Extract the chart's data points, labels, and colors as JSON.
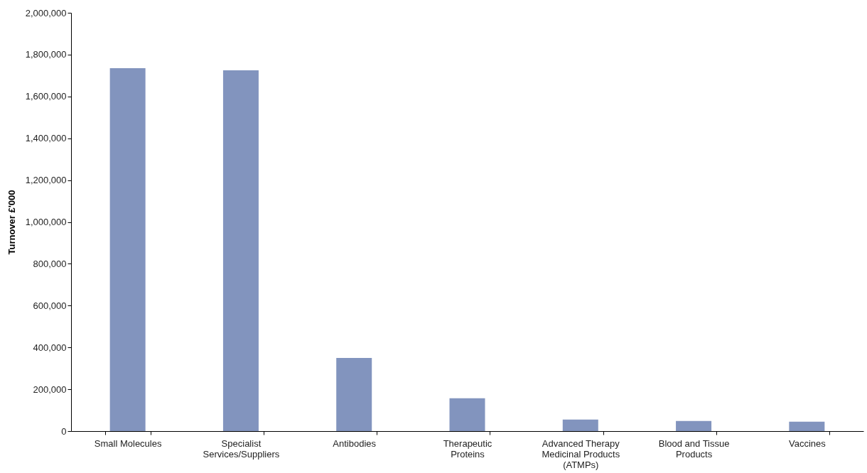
{
  "chart_data": {
    "type": "bar",
    "ylabel": "Turnover £'000",
    "categories": [
      "Small Molecules",
      "Specialist Services/Suppliers",
      "Antibodies",
      "Therapeutic Proteins",
      "Advanced Therapy Medicinal Products (ATMPs)",
      "Blood and Tissue Products",
      "Vaccines"
    ],
    "values": [
      1735000,
      1725000,
      350000,
      157000,
      55000,
      48000,
      45000
    ],
    "color": "#8294be",
    "ylim": [
      0,
      2000000
    ],
    "yticks": [
      0,
      {
        "value": 200000,
        "label": "200,000"
      },
      {
        "value": 400000,
        "label": "400,000"
      },
      {
        "value": 600000,
        "label": "600,000"
      },
      {
        "value": 800000,
        "label": "800,000"
      },
      {
        "value": 1000000,
        "label": "1,000,000"
      },
      {
        "value": 1200000,
        "label": "1,200,000"
      },
      {
        "value": 1400000,
        "label": "1,400,000"
      },
      {
        "value": 1600000,
        "label": "1,600,000"
      },
      {
        "value": 1800000,
        "label": "1,800,000"
      },
      {
        "value": 2000000,
        "label": "2,000,000"
      }
    ],
    "grid": false
  }
}
